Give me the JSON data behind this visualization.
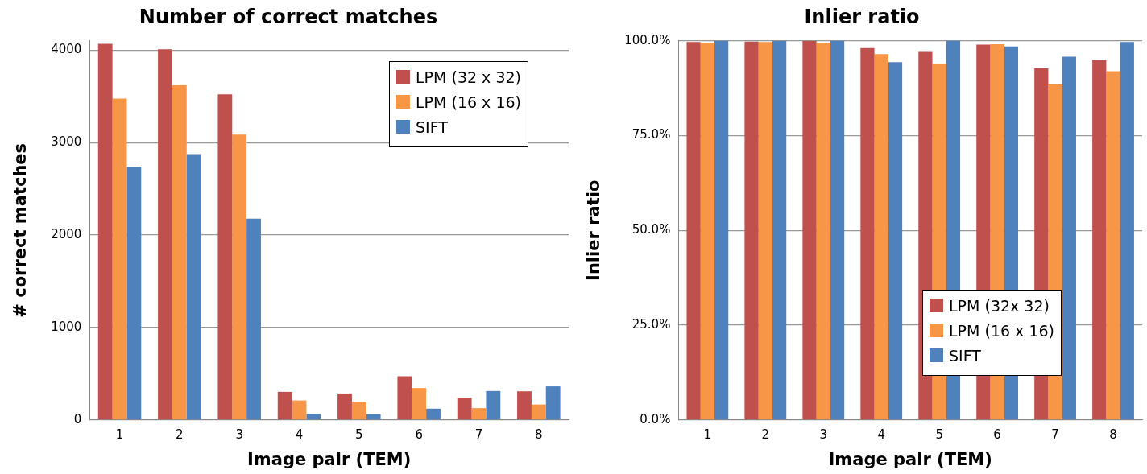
{
  "chart_data": [
    {
      "type": "bar",
      "title": "Number of correct matches",
      "xlabel": "Image pair (TEM)",
      "ylabel": "# correct matches",
      "categories": [
        "1",
        "2",
        "3",
        "4",
        "5",
        "6",
        "7",
        "8"
      ],
      "series": [
        {
          "name": "LPM (32 x 32)",
          "color": "#c0504d",
          "values": [
            4068,
            4009,
            3521,
            304,
            286,
            473,
            241,
            310
          ]
        },
        {
          "name": "LPM (16 x 16)",
          "color": "#f79646",
          "values": [
            3476,
            3619,
            3086,
            211,
            196,
            345,
            128,
            167
          ]
        },
        {
          "name": "SIFT",
          "color": "#4f81bd",
          "values": [
            2741,
            2875,
            2176,
            65,
            62,
            122,
            313,
            363
          ]
        }
      ],
      "ylim": [
        0,
        4100
      ],
      "yticks": [
        0,
        1000,
        2000,
        3000,
        4000
      ],
      "grid": "y",
      "legend": "top right"
    },
    {
      "type": "bar",
      "title": "Inlier ratio",
      "xlabel": "Image pair (TEM)",
      "ylabel": "Inlier ratio",
      "categories": [
        "1",
        "2",
        "3",
        "4",
        "5",
        "6",
        "7",
        "8"
      ],
      "series": [
        {
          "name": "LPM (32x 32)",
          "color": "#c0504d",
          "values": [
            99.7,
            99.8,
            100,
            98.1,
            97.3,
            99.0,
            92.8,
            94.9
          ]
        },
        {
          "name": "LPM (16 x 16)",
          "color": "#f79646",
          "values": [
            99.5,
            99.7,
            99.5,
            96.5,
            93.9,
            99.1,
            88.5,
            92.0
          ]
        },
        {
          "name": "SIFT",
          "color": "#4f81bd",
          "values": [
            100,
            100,
            100,
            94.4,
            100,
            98.5,
            95.8,
            99.7
          ]
        }
      ],
      "ylim": [
        0,
        100
      ],
      "yticks": [
        {
          "value": 0,
          "label": "0.0%"
        },
        {
          "value": 25,
          "label": "25.0%"
        },
        {
          "value": 50,
          "label": "50.0%"
        },
        {
          "value": 75,
          "label": "75.0%"
        },
        {
          "value": 100,
          "label": "100.0%"
        }
      ],
      "grid": "y",
      "legend": "bottom right"
    }
  ]
}
